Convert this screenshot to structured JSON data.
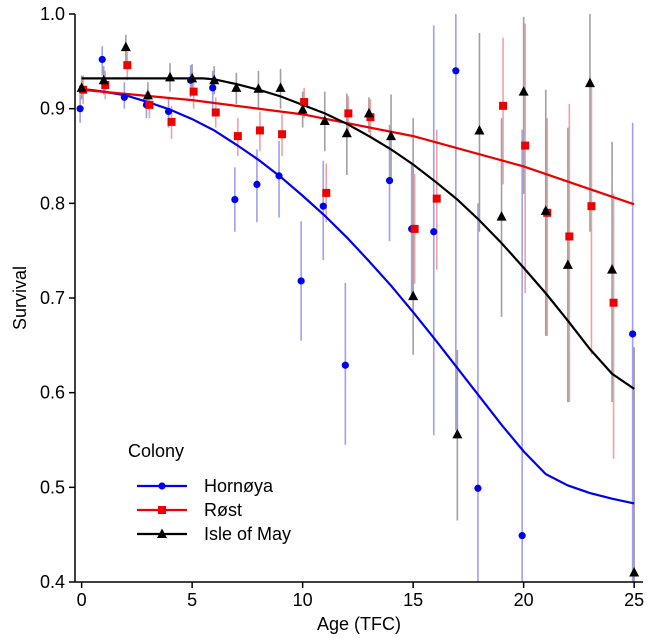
{
  "chart_data": {
    "type": "scatter",
    "title": "",
    "xlabel": "Age (TFC)",
    "ylabel": "Survival",
    "xlim": [
      -0.3,
      25.4
    ],
    "ylim": [
      0.4,
      1.0
    ],
    "xticks": [
      0,
      5,
      10,
      15,
      20,
      25
    ],
    "xtick_labels": [
      "0",
      "5",
      "10",
      "15",
      "20",
      "25"
    ],
    "yticks": [
      0.4,
      0.5,
      0.6,
      0.7,
      0.8,
      0.9,
      1.0
    ],
    "ytick_labels": [
      "0.4",
      "0.5",
      "0.6",
      "0.7",
      "0.8",
      "0.9",
      "1.0"
    ],
    "grid": false,
    "legend": {
      "title": "Colony",
      "position": "bottom-left"
    },
    "series": [
      {
        "name": "Hornøya",
        "color": "#0000ee",
        "marker": "circle",
        "x": [
          0,
          1,
          2,
          3,
          4,
          5,
          6,
          7,
          8,
          9,
          10,
          11,
          12,
          14,
          15,
          16,
          17,
          18,
          20,
          25
        ],
        "y": [
          0.9,
          0.952,
          0.912,
          0.904,
          0.897,
          0.93,
          0.922,
          0.804,
          0.82,
          0.829,
          0.718,
          0.797,
          0.629,
          0.824,
          0.773,
          0.77,
          0.94,
          0.499,
          0.449,
          0.662
        ],
        "lower": [
          0.885,
          0.935,
          0.9,
          0.89,
          0.88,
          0.912,
          0.9,
          0.77,
          0.78,
          0.785,
          0.655,
          0.74,
          0.545,
          0.76,
          0.7,
          0.555,
          0.56,
          0.4,
          0.4,
          0.4
        ],
        "upper": [
          0.915,
          0.966,
          0.928,
          0.918,
          0.912,
          0.946,
          0.94,
          0.838,
          0.857,
          0.866,
          0.781,
          0.845,
          0.716,
          0.883,
          0.843,
          0.988,
          1.0,
          0.8,
          0.878,
          0.885
        ],
        "fit": {
          "x": [
            0,
            1,
            2,
            3,
            4,
            5,
            6,
            7,
            8,
            9,
            10,
            11,
            12,
            13,
            14,
            15,
            16,
            17,
            18,
            19,
            20,
            21,
            22,
            23,
            24,
            25
          ],
          "y": [
            0.921,
            0.918,
            0.914,
            0.907,
            0.899,
            0.889,
            0.877,
            0.862,
            0.846,
            0.828,
            0.808,
            0.787,
            0.764,
            0.739,
            0.713,
            0.685,
            0.656,
            0.626,
            0.596,
            0.566,
            0.538,
            0.514,
            0.502,
            0.494,
            0.488,
            0.483
          ]
        }
      },
      {
        "name": "Røst",
        "color": "#ee0000",
        "marker": "square",
        "x": [
          0,
          1,
          2,
          3,
          4,
          5,
          6,
          7,
          8,
          9,
          10,
          11,
          12,
          13,
          15,
          16,
          19,
          20,
          21,
          22,
          23,
          24
        ],
        "y": [
          0.92,
          0.925,
          0.946,
          0.904,
          0.886,
          0.918,
          0.896,
          0.871,
          0.877,
          0.873,
          0.907,
          0.811,
          0.895,
          0.891,
          0.773,
          0.805,
          0.903,
          0.861,
          0.79,
          0.765,
          0.797,
          0.695
        ],
        "lower": [
          0.905,
          0.91,
          0.93,
          0.89,
          0.868,
          0.9,
          0.88,
          0.85,
          0.855,
          0.85,
          0.89,
          0.78,
          0.875,
          0.87,
          0.715,
          0.73,
          0.82,
          0.705,
          0.66,
          0.59,
          0.64,
          0.53
        ],
        "upper": [
          0.935,
          0.94,
          0.96,
          0.918,
          0.903,
          0.934,
          0.912,
          0.89,
          0.897,
          0.894,
          0.922,
          0.842,
          0.913,
          0.91,
          0.831,
          0.878,
          0.975,
          0.99,
          0.89,
          0.905,
          0.925,
          0.81
        ],
        "fit": {
          "x": [
            0,
            5,
            10,
            15,
            20,
            25
          ],
          "y": [
            0.92,
            0.909,
            0.894,
            0.871,
            0.839,
            0.799
          ]
        }
      },
      {
        "name": "Isle of May",
        "color": "#000000",
        "marker": "triangle",
        "x": [
          0,
          1,
          2,
          3,
          4,
          5,
          6,
          7,
          8,
          9,
          10,
          11,
          12,
          13,
          14,
          15,
          17,
          18,
          19,
          20,
          21,
          22,
          23,
          24,
          25
        ],
        "y": [
          0.922,
          0.93,
          0.965,
          0.914,
          0.933,
          0.932,
          0.93,
          0.922,
          0.921,
          0.922,
          0.899,
          0.887,
          0.874,
          0.895,
          0.871,
          0.702,
          0.556,
          0.877,
          0.786,
          0.918,
          0.792,
          0.735,
          0.927,
          0.73,
          0.41
        ],
        "lower": [
          0.91,
          0.915,
          0.95,
          0.9,
          0.918,
          0.917,
          0.915,
          0.905,
          0.9,
          0.9,
          0.88,
          0.855,
          0.83,
          0.875,
          0.825,
          0.64,
          0.465,
          0.77,
          0.68,
          0.81,
          0.66,
          0.59,
          0.77,
          0.59,
          0.4
        ],
        "upper": [
          0.935,
          0.945,
          0.978,
          0.928,
          0.948,
          0.947,
          0.945,
          0.938,
          0.94,
          0.942,
          0.918,
          0.918,
          0.916,
          0.912,
          0.915,
          0.89,
          0.645,
          0.98,
          0.89,
          0.997,
          0.92,
          0.88,
          1.0,
          0.865,
          0.648
        ],
        "fit": {
          "x": [
            0,
            1,
            2,
            3,
            4,
            5,
            5.5,
            6,
            7,
            8,
            9,
            10,
            11,
            12,
            13,
            14,
            15,
            16,
            17,
            18,
            19,
            20,
            21,
            22,
            23,
            24,
            25
          ],
          "y": [
            0.932,
            0.932,
            0.932,
            0.932,
            0.932,
            0.932,
            0.932,
            0.931,
            0.926,
            0.92,
            0.913,
            0.904,
            0.895,
            0.884,
            0.871,
            0.857,
            0.841,
            0.823,
            0.804,
            0.782,
            0.758,
            0.732,
            0.705,
            0.676,
            0.646,
            0.62,
            0.604
          ]
        }
      }
    ]
  }
}
